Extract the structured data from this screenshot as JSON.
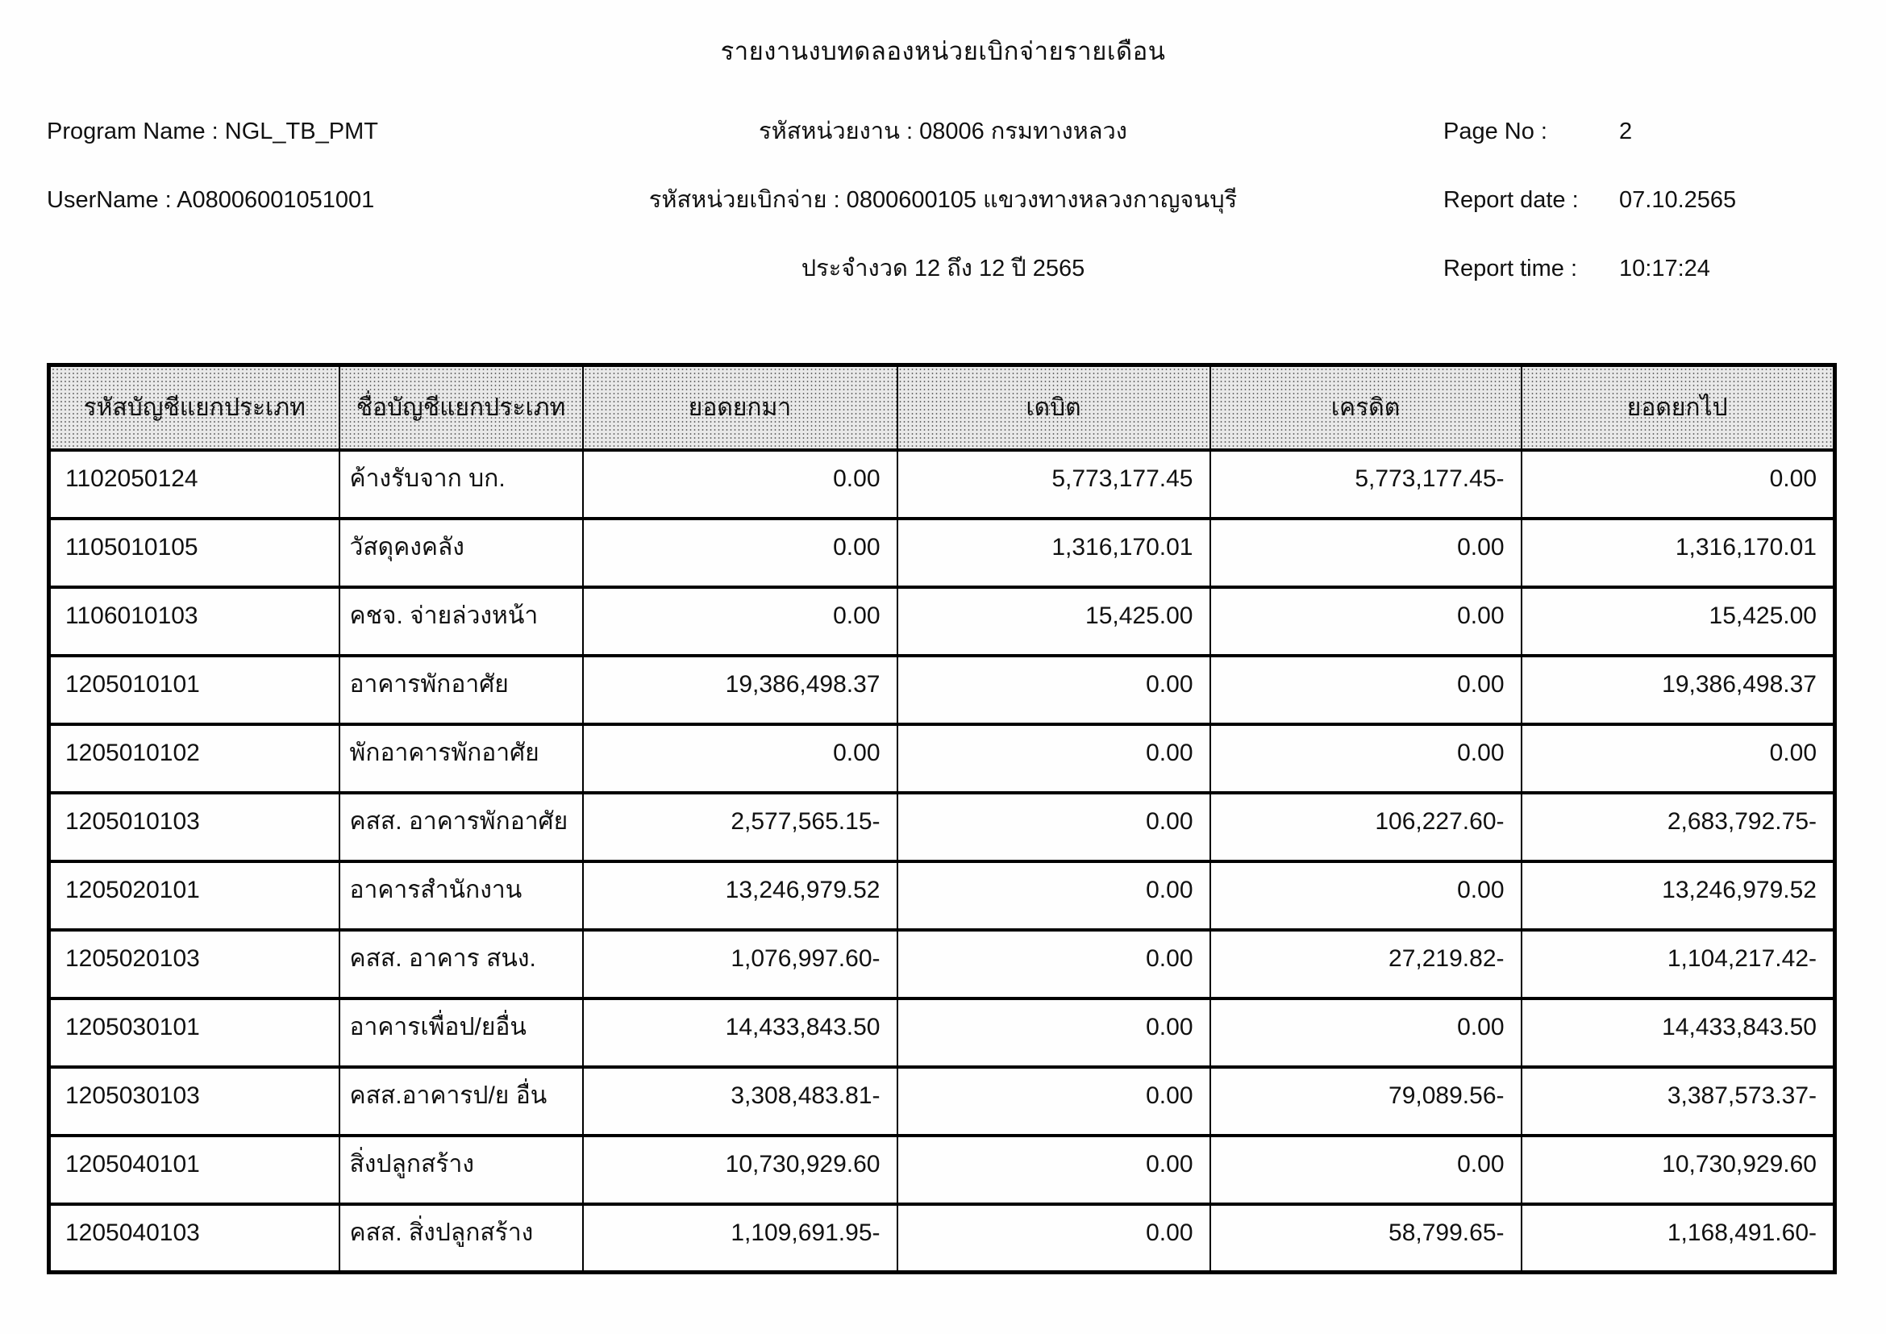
{
  "report": {
    "title": "รายงานงบทดลองหน่วยเบิกจ่ายรายเดือน",
    "left": [
      {
        "label": "Program Name :",
        "value": "NGL_TB_PMT"
      },
      {
        "label": "UserName :",
        "value": "A08006001051001"
      }
    ],
    "center": [
      "รหัสหน่วยงาน : 08006 กรมทางหลวง",
      "รหัสหน่วยเบิกจ่าย : 0800600105 แขวงทางหลวงกาญจนบุรี",
      "ประจำงวด 12 ถึง 12 ปี 2565"
    ],
    "right": [
      {
        "label": "Page No :",
        "value": "2"
      },
      {
        "label": "Report date :",
        "value": "07.10.2565"
      },
      {
        "label": "Report time :",
        "value": "10:17:24"
      }
    ]
  },
  "table": {
    "columns": [
      "รหัสบัญชีแยกประเภท",
      "ชื่อบัญชีแยกประเภท",
      "ยอดยกมา",
      "เดบิต",
      "เครดิต",
      "ยอดยกไป"
    ],
    "rows": [
      [
        "1102050124",
        "ค้างรับจาก บก.",
        "0.00",
        "5,773,177.45",
        "5,773,177.45-",
        "0.00"
      ],
      [
        "1105010105",
        "วัสดุคงคลัง",
        "0.00",
        "1,316,170.01",
        "0.00",
        "1,316,170.01"
      ],
      [
        "1106010103",
        "คชจ. จ่ายล่วงหน้า",
        "0.00",
        "15,425.00",
        "0.00",
        "15,425.00"
      ],
      [
        "1205010101",
        "อาคารพักอาศัย",
        "19,386,498.37",
        "0.00",
        "0.00",
        "19,386,498.37"
      ],
      [
        "1205010102",
        "พักอาคารพักอาศัย",
        "0.00",
        "0.00",
        "0.00",
        "0.00"
      ],
      [
        "1205010103",
        "คสส. อาคารพักอาศัย",
        "2,577,565.15-",
        "0.00",
        "106,227.60-",
        "2,683,792.75-"
      ],
      [
        "1205020101",
        "อาคารสำนักงาน",
        "13,246,979.52",
        "0.00",
        "0.00",
        "13,246,979.52"
      ],
      [
        "1205020103",
        "คสส. อาคาร สนง.",
        "1,076,997.60-",
        "0.00",
        "27,219.82-",
        "1,104,217.42-"
      ],
      [
        "1205030101",
        "อาคารเพื่อป/ยอื่น",
        "14,433,843.50",
        "0.00",
        "0.00",
        "14,433,843.50"
      ],
      [
        "1205030103",
        "คสส.อาคารป/ย อื่น",
        "3,308,483.81-",
        "0.00",
        "79,089.56-",
        "3,387,573.37-"
      ],
      [
        "1205040101",
        "สิ่งปลูกสร้าง",
        "10,730,929.60",
        "0.00",
        "0.00",
        "10,730,929.60"
      ],
      [
        "1205040103",
        "คสส. สิ่งปลูกสร้าง",
        "1,109,691.95-",
        "0.00",
        "58,799.65-",
        "1,168,491.60-"
      ]
    ]
  }
}
